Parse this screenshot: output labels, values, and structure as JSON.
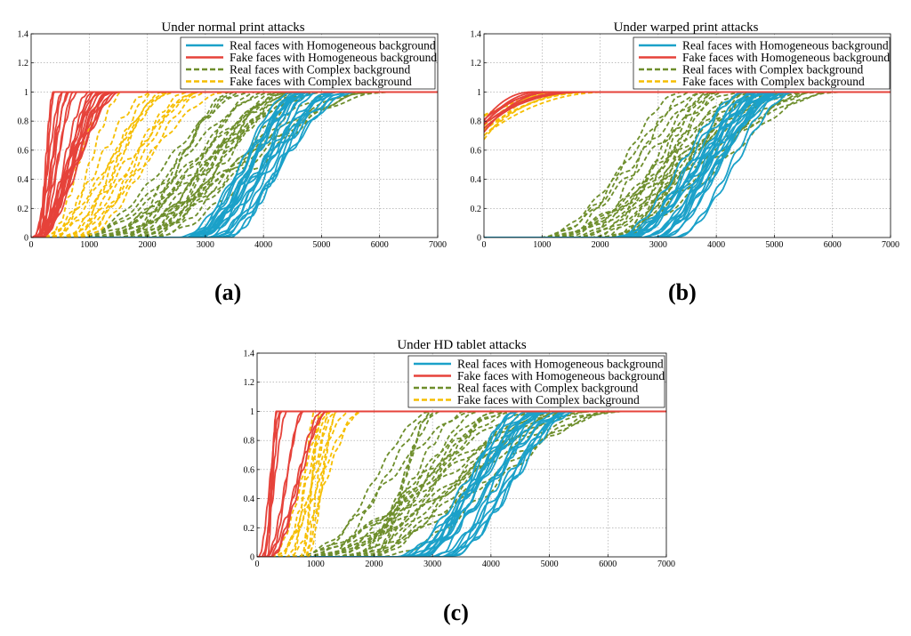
{
  "chart_data": [
    {
      "type": "line",
      "panel_label": "(a)",
      "title": "Under normal print attacks",
      "xlabel": "",
      "ylabel": "",
      "xlim": [
        0,
        7000
      ],
      "ylim": [
        0,
        1.4
      ],
      "xticks": [
        0,
        1000,
        2000,
        3000,
        4000,
        5000,
        6000,
        7000
      ],
      "yticks": [
        0,
        0.2,
        0.4,
        0.6,
        0.8,
        1,
        1.2,
        1.4
      ],
      "ytick_labels": [
        "0",
        "0.2",
        "0.4",
        "0.6",
        "0.8",
        "1",
        "1.2",
        "1.4"
      ],
      "grid": true,
      "legend_position": "top-right",
      "series": [
        {
          "name": "Real faces with Homogeneous background",
          "color": "#1BA1C9",
          "style": "solid",
          "count": 22,
          "t0_range": [
            2500,
            3500
          ],
          "t1_range": [
            4500,
            5600
          ]
        },
        {
          "name": "Fake faces with Homogeneous background",
          "color": "#E6423A",
          "style": "solid",
          "count": 22,
          "t0_range": [
            0,
            200
          ],
          "t1_range": [
            380,
            1650
          ]
        },
        {
          "name": "Real faces with Complex background",
          "color": "#6E8E2C",
          "style": "dashed",
          "count": 26,
          "t0_range": [
            700,
            2100
          ],
          "t1_range": [
            3300,
            6300
          ]
        },
        {
          "name": "Fake faces with Complex background",
          "color": "#F6BE00",
          "style": "dashed",
          "count": 14,
          "t0_range": [
            100,
            900
          ],
          "t1_range": [
            1300,
            3400
          ]
        }
      ]
    },
    {
      "type": "line",
      "panel_label": "(b)",
      "title": "Under warped print attacks",
      "xlabel": "",
      "ylabel": "",
      "xlim": [
        0,
        7000
      ],
      "ylim": [
        0,
        1.4
      ],
      "xticks": [
        0,
        1000,
        2000,
        3000,
        4000,
        5000,
        6000,
        7000
      ],
      "yticks": [
        0,
        0.2,
        0.4,
        0.6,
        0.8,
        1,
        1.2,
        1.4
      ],
      "ytick_labels": [
        "0",
        "0.2",
        "0.4",
        "0.6",
        "0.8",
        "1",
        "1.2",
        "1.4"
      ],
      "grid": true,
      "legend_position": "top-right",
      "series": [
        {
          "name": "Real faces with Homogeneous background",
          "color": "#1BA1C9",
          "style": "solid",
          "count": 22,
          "t0_range": [
            2200,
            3300
          ],
          "t1_range": [
            4500,
            5500
          ]
        },
        {
          "name": "Fake faces with Homogeneous background",
          "color": "#E6423A",
          "style": "solid",
          "count": 8,
          "start_range": [
            0.72,
            0.82
          ],
          "t1_range": [
            800,
            1800
          ]
        },
        {
          "name": "Real faces with Complex background",
          "color": "#6E8E2C",
          "style": "dashed",
          "count": 26,
          "t0_range": [
            900,
            2400
          ],
          "t1_range": [
            3300,
            6200
          ]
        },
        {
          "name": "Fake faces with Complex background",
          "color": "#F6BE00",
          "style": "dashed",
          "count": 8,
          "start_range": [
            0.66,
            0.85
          ],
          "t1_range": [
            1200,
            2200
          ]
        }
      ]
    },
    {
      "type": "line",
      "panel_label": "(c)",
      "title": "Under HD tablet attacks",
      "xlabel": "",
      "ylabel": "",
      "xlim": [
        0,
        7000
      ],
      "ylim": [
        0,
        1.4
      ],
      "xticks": [
        0,
        1000,
        2000,
        3000,
        4000,
        5000,
        6000,
        7000
      ],
      "yticks": [
        0,
        0.2,
        0.4,
        0.6,
        0.8,
        1,
        1.2,
        1.4
      ],
      "ytick_labels": [
        "0",
        "0.2",
        "0.4",
        "0.6",
        "0.8",
        "1",
        "1.2",
        "1.4"
      ],
      "grid": true,
      "legend_position": "top-right",
      "series": [
        {
          "name": "Real faces with Homogeneous background",
          "color": "#1BA1C9",
          "style": "solid",
          "count": 22,
          "t0_range": [
            2300,
            3300
          ],
          "t1_range": [
            4400,
            5500
          ]
        },
        {
          "name": "Fake faces with Homogeneous background",
          "color": "#E6423A",
          "style": "solid",
          "count": 10,
          "t0_range": [
            0,
            250
          ],
          "t1_range": [
            300,
            1500
          ]
        },
        {
          "name": "Real faces with Complex background",
          "color": "#6E8E2C",
          "style": "dashed",
          "count": 26,
          "t0_range": [
            400,
            2100
          ],
          "t1_range": [
            2700,
            6300
          ]
        },
        {
          "name": "Fake faces with Complex background",
          "color": "#F6BE00",
          "style": "dashed",
          "count": 12,
          "t0_range": [
            200,
            900
          ],
          "t1_range": [
            900,
            2000
          ]
        }
      ]
    }
  ]
}
